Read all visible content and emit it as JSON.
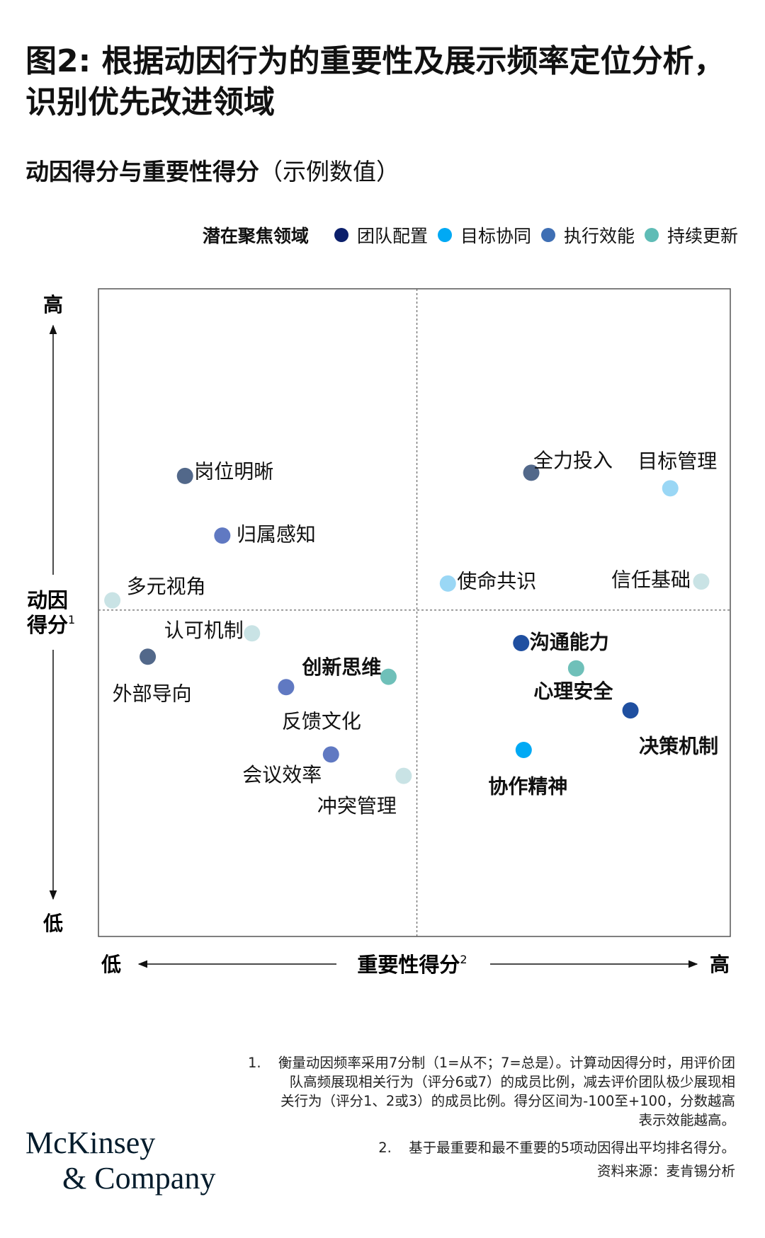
{
  "title": "图2: 根据动因行为的重要性及展示频率定位分析，识别优先改进领域",
  "subtitle": {
    "main": "动因得分与重要性得分",
    "paren": "（示例数值）"
  },
  "legend": {
    "title": "潜在聚焦领域",
    "items": [
      {
        "label": "团队配置",
        "color": "#0b1f6b"
      },
      {
        "label": "目标协同",
        "color": "#00a9f4"
      },
      {
        "label": "执行效能",
        "color": "#3f6fb4"
      },
      {
        "label": "持续更新",
        "color": "#5fbcb6"
      }
    ]
  },
  "chart_data": {
    "type": "scatter",
    "xlabel": "重要性得分",
    "xlabel_sup": "2",
    "ylabel_line1": "动因",
    "ylabel_line2": "得分",
    "ylabel_sup": "1",
    "x_low": "低",
    "x_high": "高",
    "y_low": "低",
    "y_high": "高",
    "xlim": [
      0,
      100
    ],
    "ylim": [
      0,
      100
    ],
    "quadrant_divider": {
      "x": 50.4,
      "y": 50.4
    },
    "points": [
      {
        "label": "岗位明晰",
        "x": 13.7,
        "y": 71.1,
        "color": "#52688a",
        "bold": false
      },
      {
        "label": "归属感知",
        "x": 19.6,
        "y": 61.9,
        "color": "#6079c2",
        "bold": false
      },
      {
        "label": "多元视角",
        "x": 2.2,
        "y": 51.9,
        "color": "#c9e3e5",
        "bold": false
      },
      {
        "label": "认可机制",
        "x": 24.3,
        "y": 46.8,
        "color": "#c9e3e5",
        "bold": false
      },
      {
        "label": "外部导向",
        "x": 7.8,
        "y": 43.2,
        "color": "#52688a",
        "bold": false
      },
      {
        "label": "创新思维",
        "x": 45.9,
        "y": 40.1,
        "color": "#6fc0b9",
        "bold": true
      },
      {
        "label": "反馈文化",
        "x": 29.7,
        "y": 38.5,
        "color": "#6079c2",
        "bold": false
      },
      {
        "label": "会议效率",
        "x": 36.8,
        "y": 28.1,
        "color": "#6079c2",
        "bold": false
      },
      {
        "label": "冲突管理",
        "x": 48.3,
        "y": 24.8,
        "color": "#c9e3e5",
        "bold": false
      },
      {
        "label": "全力投入",
        "x": 68.5,
        "y": 71.6,
        "color": "#52688a",
        "bold": false
      },
      {
        "label": "目标管理",
        "x": 90.5,
        "y": 69.2,
        "color": "#9ad7f5",
        "bold": false
      },
      {
        "label": "使命共识",
        "x": 55.3,
        "y": 54.5,
        "color": "#9ad7f5",
        "bold": false
      },
      {
        "label": "信任基础",
        "x": 95.4,
        "y": 54.8,
        "color": "#c9e3e5",
        "bold": false
      },
      {
        "label": "沟通能力",
        "x": 66.9,
        "y": 45.3,
        "color": "#1f4fa0",
        "bold": true
      },
      {
        "label": "心理安全",
        "x": 75.6,
        "y": 41.4,
        "color": "#6fc0b9",
        "bold": true
      },
      {
        "label": "决策机制",
        "x": 84.2,
        "y": 34.9,
        "color": "#1f4fa0",
        "bold": true
      },
      {
        "label": "协作精神",
        "x": 67.3,
        "y": 28.8,
        "color": "#00a9f4",
        "bold": true
      }
    ]
  },
  "footnotes": {
    "n1_num": "1.",
    "n1_text": "衡量动因频率采用7分制（1=从不；7=总是）。计算动因得分时，用评价团队高频展现相关行为（评分6或7）的成员比例，减去评价团队极少展现相关行为（评分1、2或3）的成员比例。得分区间为-100至+100，分数越高表示效能越高。",
    "n2_num": "2.",
    "n2_text": "基于最重要和最不重要的5项动因得出平均排名得分。",
    "source": "资料来源：麦肯锡分析"
  },
  "logo": {
    "line1": "McKinsey",
    "line2": "& Company"
  }
}
